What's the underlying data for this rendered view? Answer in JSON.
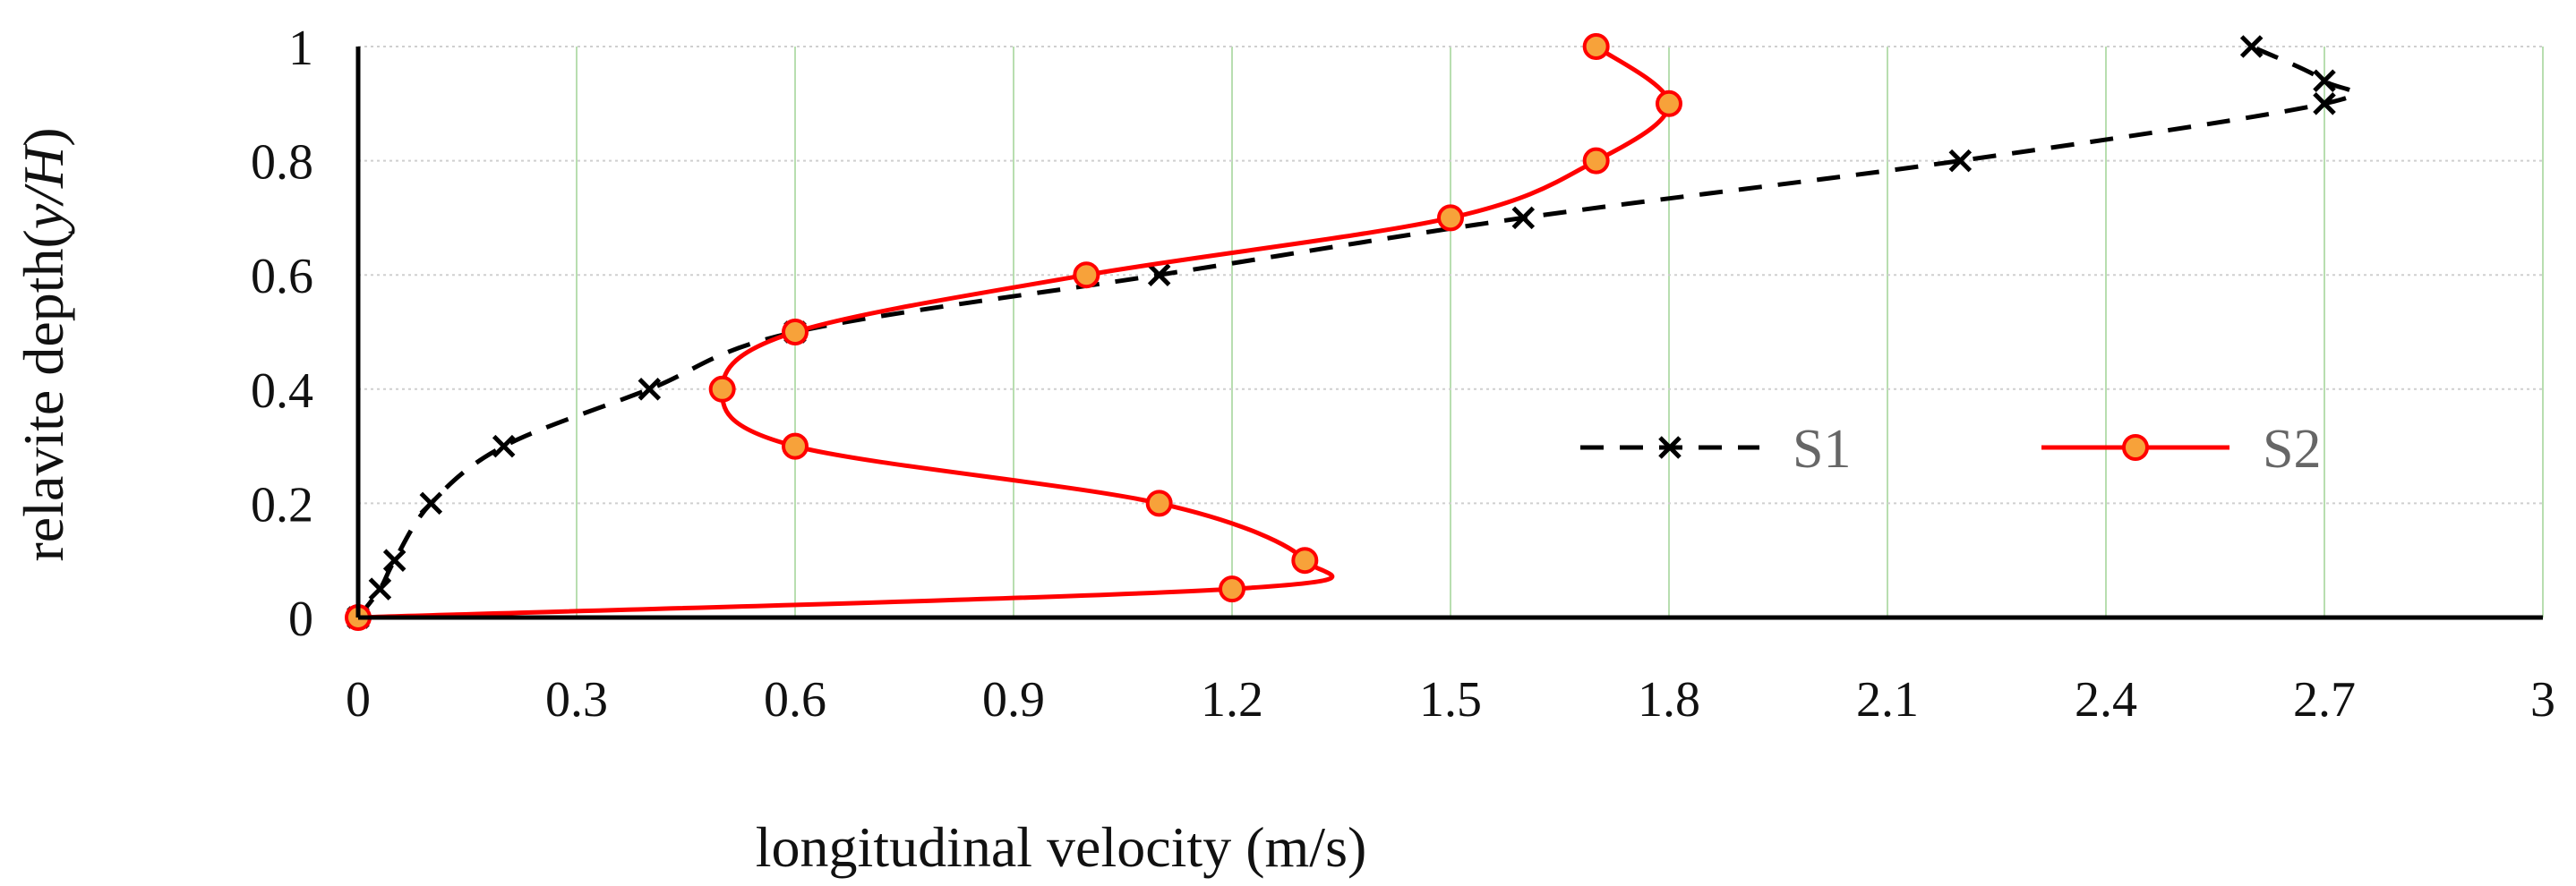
{
  "chart_data": {
    "type": "line",
    "title": "",
    "xlabel": "longitudinal velocity (m/s)",
    "ylabel_prefix": "relavite depth(",
    "ylabel_italic": "y/H",
    "ylabel_suffix": ")",
    "xlim": [
      0,
      3
    ],
    "ylim": [
      0,
      1
    ],
    "x_ticks": [
      0,
      0.3,
      0.6,
      0.9,
      1.2,
      1.5,
      1.8,
      2.1,
      2.4,
      2.7,
      3
    ],
    "y_ticks": [
      0,
      0.2,
      0.4,
      0.6,
      0.8,
      1
    ],
    "grid": true,
    "legend_position": "center-right",
    "series": [
      {
        "name": "S1",
        "style": "dashed-x",
        "color": "#000000",
        "points": [
          {
            "x": 0,
            "y": 0
          },
          {
            "x": 0.03,
            "y": 0.05
          },
          {
            "x": 0.05,
            "y": 0.1
          },
          {
            "x": 0.1,
            "y": 0.2
          },
          {
            "x": 0.2,
            "y": 0.3
          },
          {
            "x": 0.4,
            "y": 0.4
          },
          {
            "x": 0.6,
            "y": 0.5
          },
          {
            "x": 1.1,
            "y": 0.6
          },
          {
            "x": 1.6,
            "y": 0.7
          },
          {
            "x": 2.2,
            "y": 0.8
          },
          {
            "x": 2.7,
            "y": 0.9
          },
          {
            "x": 2.7,
            "y": 0.94
          },
          {
            "x": 2.6,
            "y": 1.0
          }
        ]
      },
      {
        "name": "S2",
        "style": "solid-circle",
        "color": "#ff0000",
        "marker_fill": "#f7a23a",
        "points": [
          {
            "x": 0,
            "y": 0
          },
          {
            "x": 1.2,
            "y": 0.05
          },
          {
            "x": 1.3,
            "y": 0.1
          },
          {
            "x": 1.1,
            "y": 0.2
          },
          {
            "x": 0.6,
            "y": 0.3
          },
          {
            "x": 0.5,
            "y": 0.4
          },
          {
            "x": 0.6,
            "y": 0.5
          },
          {
            "x": 1.0,
            "y": 0.6
          },
          {
            "x": 1.5,
            "y": 0.7
          },
          {
            "x": 1.7,
            "y": 0.8
          },
          {
            "x": 1.8,
            "y": 0.9
          },
          {
            "x": 1.7,
            "y": 1.0
          }
        ]
      }
    ]
  }
}
